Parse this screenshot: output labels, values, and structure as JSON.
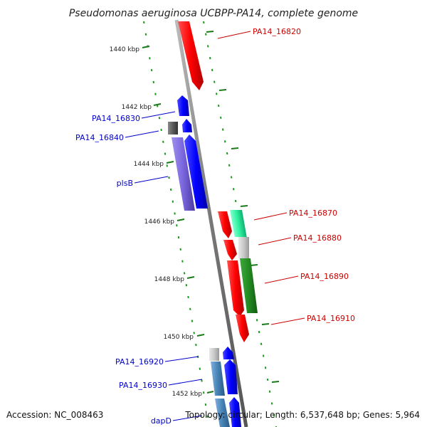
{
  "title": "Pseudomonas aeruginosa UCBPP-PA14, complete genome",
  "footer": {
    "accession": "Accession: NC_008463",
    "topology": "Topology: circular; Length: 6,537,648 bp; Genes: 5,964"
  },
  "ticks": [
    "1440 kbp",
    "1442 kbp",
    "1444 kbp",
    "1446 kbp",
    "1448 kbp",
    "1450 kbp",
    "1452 kbp"
  ],
  "genes_left": [
    {
      "label": "PA14_16830",
      "color": "#0000cc"
    },
    {
      "label": "PA14_16840",
      "color": "#0000cc"
    },
    {
      "label": "plsB",
      "color": "#0000cc"
    },
    {
      "label": "PA14_16920",
      "color": "#0000cc"
    },
    {
      "label": "PA14_16930",
      "color": "#0000cc"
    },
    {
      "label": "dapD",
      "color": "#0000cc"
    }
  ],
  "genes_right": [
    {
      "label": "PA14_16820",
      "color": "#cc0000"
    },
    {
      "label": "PA14_16870",
      "color": "#cc0000"
    },
    {
      "label": "PA14_16880",
      "color": "#cc0000"
    },
    {
      "label": "PA14_16890",
      "color": "#cc0000"
    },
    {
      "label": "PA14_16910",
      "color": "#cc0000"
    }
  ]
}
